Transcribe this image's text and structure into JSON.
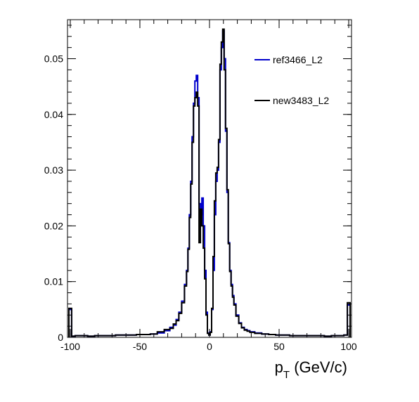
{
  "chart_data": {
    "type": "line",
    "title": "",
    "xlabel_main": "p",
    "xlabel_sub": "T",
    "xlabel_unit": " (GeV/c)",
    "ylabel": "",
    "xlim": [
      -102,
      102
    ],
    "ylim": [
      0,
      0.057
    ],
    "x_ticks": [
      -100,
      -50,
      0,
      50,
      100
    ],
    "y_ticks": [
      0,
      0.01,
      0.02,
      0.03,
      0.04,
      0.05
    ],
    "x_tick_labels": [
      "-100",
      "-50",
      "0",
      "50",
      "100"
    ],
    "y_tick_labels": [
      "0",
      "0.01",
      "0.02",
      "0.03",
      "0.04",
      "0.05"
    ],
    "legend_position": "top-right",
    "series": [
      {
        "name": "ref3466_L2",
        "color": "#0000cc",
        "points": [
          [
            -100,
            0.005
          ],
          [
            -98,
            0.0002
          ],
          [
            -95,
            0.0003
          ],
          [
            -90,
            0.0003
          ],
          [
            -85,
            0.0002
          ],
          [
            -80,
            0.0003
          ],
          [
            -75,
            0.0003
          ],
          [
            -70,
            0.0003
          ],
          [
            -65,
            0.0004
          ],
          [
            -60,
            0.0004
          ],
          [
            -55,
            0.0004
          ],
          [
            -50,
            0.0005
          ],
          [
            -45,
            0.0005
          ],
          [
            -40,
            0.0006
          ],
          [
            -35,
            0.0008
          ],
          [
            -30,
            0.0012
          ],
          [
            -27,
            0.0018
          ],
          [
            -25,
            0.0022
          ],
          [
            -23,
            0.0032
          ],
          [
            -21,
            0.0045
          ],
          [
            -19,
            0.0065
          ],
          [
            -17,
            0.0095
          ],
          [
            -16,
            0.012
          ],
          [
            -15,
            0.016
          ],
          [
            -14,
            0.022
          ],
          [
            -13,
            0.028
          ],
          [
            -12,
            0.036
          ],
          [
            -11,
            0.042
          ],
          [
            -10,
            0.046
          ],
          [
            -9,
            0.047
          ],
          [
            -8,
            0.043
          ],
          [
            -7,
            0.024
          ],
          [
            -6,
            0.022
          ],
          [
            -5,
            0.025
          ],
          [
            -4,
            0.02
          ],
          [
            -3,
            0.012
          ],
          [
            -2,
            0.0045
          ],
          [
            -1,
            0.0008
          ],
          [
            0,
            0.0004
          ],
          [
            1,
            0.001
          ],
          [
            2,
            0.005
          ],
          [
            3,
            0.012
          ],
          [
            4,
            0.022
          ],
          [
            5,
            0.028
          ],
          [
            6,
            0.03
          ],
          [
            7,
            0.035
          ],
          [
            8,
            0.048
          ],
          [
            9,
            0.052
          ],
          [
            10,
            0.055
          ],
          [
            11,
            0.05
          ],
          [
            12,
            0.037
          ],
          [
            13,
            0.026
          ],
          [
            14,
            0.017
          ],
          [
            15,
            0.012
          ],
          [
            16,
            0.0095
          ],
          [
            17,
            0.0075
          ],
          [
            18,
            0.006
          ],
          [
            20,
            0.004
          ],
          [
            22,
            0.0026
          ],
          [
            24,
            0.0018
          ],
          [
            26,
            0.0014
          ],
          [
            28,
            0.0012
          ],
          [
            30,
            0.001
          ],
          [
            35,
            0.0008
          ],
          [
            40,
            0.0006
          ],
          [
            45,
            0.0005
          ],
          [
            50,
            0.0004
          ],
          [
            55,
            0.0004
          ],
          [
            60,
            0.0003
          ],
          [
            65,
            0.0003
          ],
          [
            70,
            0.0003
          ],
          [
            75,
            0.0003
          ],
          [
            80,
            0.0003
          ],
          [
            85,
            0.0002
          ],
          [
            90,
            0.0003
          ],
          [
            95,
            0.0003
          ],
          [
            98,
            0.0004
          ],
          [
            100,
            0.0058
          ]
        ]
      },
      {
        "name": "new3483_L2",
        "color": "#000000",
        "points": [
          [
            -100,
            0.0052
          ],
          [
            -98,
            0.0002
          ],
          [
            -95,
            0.0003
          ],
          [
            -90,
            0.0003
          ],
          [
            -85,
            0.0002
          ],
          [
            -80,
            0.0003
          ],
          [
            -75,
            0.0003
          ],
          [
            -70,
            0.0003
          ],
          [
            -65,
            0.0004
          ],
          [
            -60,
            0.0004
          ],
          [
            -55,
            0.0004
          ],
          [
            -50,
            0.0005
          ],
          [
            -45,
            0.0005
          ],
          [
            -40,
            0.0006
          ],
          [
            -35,
            0.001
          ],
          [
            -30,
            0.0014
          ],
          [
            -27,
            0.0016
          ],
          [
            -25,
            0.0024
          ],
          [
            -23,
            0.003
          ],
          [
            -21,
            0.0043
          ],
          [
            -19,
            0.0062
          ],
          [
            -17,
            0.0092
          ],
          [
            -16,
            0.0118
          ],
          [
            -15,
            0.0158
          ],
          [
            -14,
            0.0215
          ],
          [
            -13,
            0.0275
          ],
          [
            -12,
            0.035
          ],
          [
            -11,
            0.0415
          ],
          [
            -10,
            0.043
          ],
          [
            -9,
            0.044
          ],
          [
            -8,
            0.0415
          ],
          [
            -7,
            0.017
          ],
          [
            -6,
            0.023
          ],
          [
            -5,
            0.02
          ],
          [
            -4,
            0.016
          ],
          [
            -3,
            0.0105
          ],
          [
            -2,
            0.004
          ],
          [
            -1,
            0.0007
          ],
          [
            0,
            0.0004
          ],
          [
            1,
            0.0009
          ],
          [
            2,
            0.0052
          ],
          [
            3,
            0.0145
          ],
          [
            4,
            0.0245
          ],
          [
            5,
            0.0295
          ],
          [
            6,
            0.0305
          ],
          [
            7,
            0.0355
          ],
          [
            8,
            0.049
          ],
          [
            9,
            0.053
          ],
          [
            10,
            0.0553
          ],
          [
            11,
            0.048
          ],
          [
            12,
            0.0375
          ],
          [
            13,
            0.0265
          ],
          [
            14,
            0.0168
          ],
          [
            15,
            0.0118
          ],
          [
            16,
            0.0092
          ],
          [
            17,
            0.0072
          ],
          [
            18,
            0.0058
          ],
          [
            20,
            0.0038
          ],
          [
            22,
            0.0025
          ],
          [
            24,
            0.0017
          ],
          [
            26,
            0.0013
          ],
          [
            28,
            0.0011
          ],
          [
            30,
            0.0009
          ],
          [
            35,
            0.0007
          ],
          [
            40,
            0.0006
          ],
          [
            45,
            0.0005
          ],
          [
            50,
            0.0004
          ],
          [
            55,
            0.0004
          ],
          [
            60,
            0.0003
          ],
          [
            65,
            0.0003
          ],
          [
            70,
            0.0003
          ],
          [
            75,
            0.0003
          ],
          [
            80,
            0.0003
          ],
          [
            85,
            0.0002
          ],
          [
            90,
            0.0003
          ],
          [
            95,
            0.0003
          ],
          [
            98,
            0.0004
          ],
          [
            100,
            0.0062
          ]
        ]
      }
    ]
  }
}
